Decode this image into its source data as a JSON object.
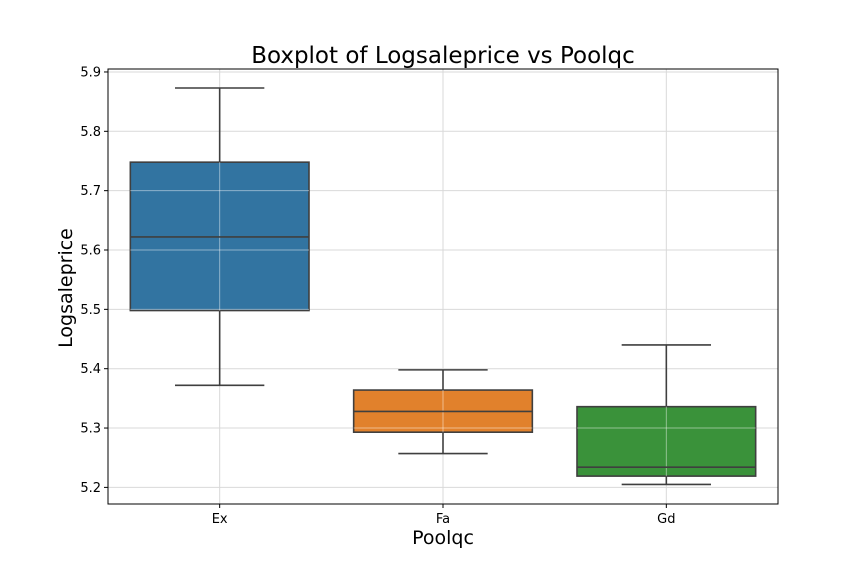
{
  "chart_data": {
    "type": "boxplot",
    "title": "Boxplot of Logsaleprice vs Poolqc",
    "xlabel": "Poolqc",
    "ylabel": "Logsaleprice",
    "ylim": [
      5.172,
      5.905
    ],
    "yticks": [
      "5.2",
      "5.3",
      "5.4",
      "5.5",
      "5.6",
      "5.7",
      "5.8",
      "5.9"
    ],
    "grid": true,
    "categories": [
      "Ex",
      "Fa",
      "Gd"
    ],
    "boxes": [
      {
        "category": "Ex",
        "whisker_low": 5.372,
        "q1": 5.498,
        "median": 5.622,
        "q3": 5.748,
        "whisker_high": 5.873,
        "color": "#3274a1"
      },
      {
        "category": "Fa",
        "whisker_low": 5.257,
        "q1": 5.293,
        "median": 5.328,
        "q3": 5.364,
        "whisker_high": 5.398,
        "color": "#e1812c"
      },
      {
        "category": "Gd",
        "whisker_low": 5.205,
        "q1": 5.219,
        "median": 5.234,
        "q3": 5.336,
        "whisker_high": 5.44,
        "color": "#3a923a"
      }
    ]
  }
}
